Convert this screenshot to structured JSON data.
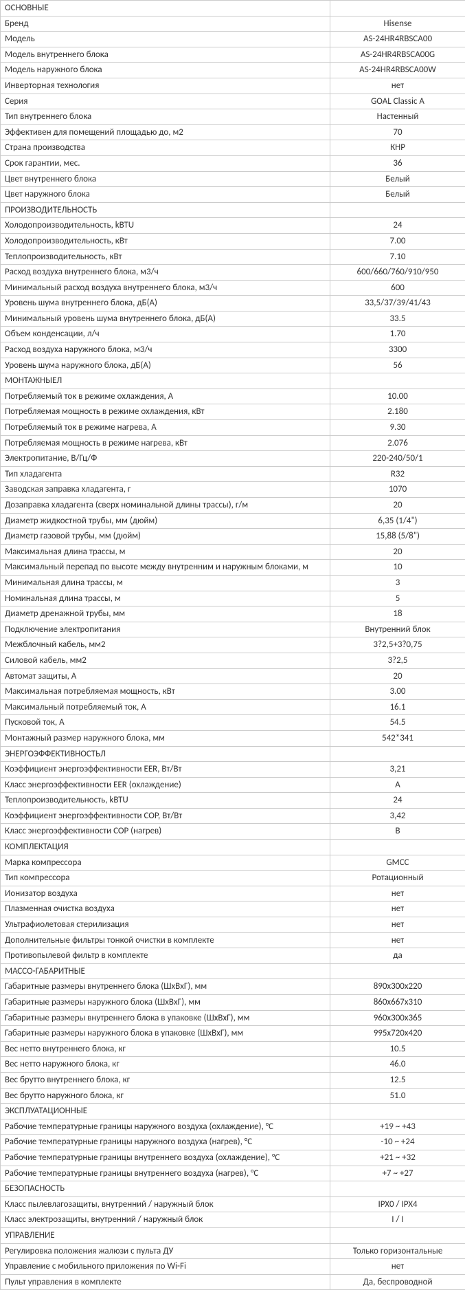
{
  "sections": [
    {
      "header": "ОСНОВНЫЕ",
      "rows": [
        {
          "label": "Бренд",
          "value": "Hisense"
        },
        {
          "label": "Модель",
          "value": "AS-24HR4RBSCA00"
        },
        {
          "label": "Модель внутреннего блока",
          "value": "AS-24HR4RBSCA00G"
        },
        {
          "label": "Модель наружного блока",
          "value": "AS-24HR4RBSCA00W"
        },
        {
          "label": "Инверторная технология",
          "value": "нет"
        },
        {
          "label": "Серия",
          "value": "GOAL Classic A"
        },
        {
          "label": "Тип внутреннего блока",
          "value": "Настенный"
        },
        {
          "label": "Эффективен для помещений площадью до, м2",
          "value": "70"
        },
        {
          "label": "Страна производства",
          "value": "КНР"
        },
        {
          "label": "Срок гарантии, мес.",
          "value": "36"
        },
        {
          "label": "Цвет внутреннего блока",
          "value": "Белый"
        },
        {
          "label": "Цвет наружного блока",
          "value": "Белый"
        }
      ]
    },
    {
      "header": "ПРОИЗВОДИТЕЛЬНОСТЬ",
      "rows": [
        {
          "label": "Холодопроизводительность, kBTU",
          "value": "24"
        },
        {
          "label": "Холодопроизводительность, кВт",
          "value": "7.00"
        },
        {
          "label": "Теплопроизводительность, кВт",
          "value": "7.10"
        },
        {
          "label": "Расход воздуха внутреннего блока, м3/ч",
          "value": "600/660/760/910/950"
        },
        {
          "label": "Минимальный расход воздуха внутреннего блока, м3/ч",
          "value": "600"
        },
        {
          "label": "Уровень шума внутреннего блока, дБ(А)",
          "value": "33,5/37/39/41/43"
        },
        {
          "label": "Минимальный уровень шума внутреннего блока, дБ(А)",
          "value": "33.5"
        },
        {
          "label": "Объем конденсации, л/ч",
          "value": "1.70"
        },
        {
          "label": "Расход воздуха наружного блока, м3/ч",
          "value": "3300"
        },
        {
          "label": "Уровень шума наружного блока, дБ(А)",
          "value": "56"
        }
      ]
    },
    {
      "header": "МОНТАЖНЫЕЛ",
      "rows": [
        {
          "label": "Потребляемый ток в режиме охлаждения, А",
          "value": "10.00"
        },
        {
          "label": "Потребляемая мощность в режиме охлаждения, кВт",
          "value": "2.180"
        },
        {
          "label": "Потребляемый ток в режиме нагрева, А",
          "value": "9.30"
        },
        {
          "label": "Потребляемая мощность в режиме нагрева, кВт",
          "value": "2.076"
        },
        {
          "label": "Электропитание, В/Гц/Ф",
          "value": "220-240/50/1"
        },
        {
          "label": "Тип хладагента",
          "value": "R32"
        },
        {
          "label": "Заводская заправка хладагента, г",
          "value": "1070"
        },
        {
          "label": "Дозаправка хладагента (сверх номинальной длины трассы), г/м",
          "value": "20"
        },
        {
          "label": "Диаметр жидкостной трубы, мм (дюйм)",
          "value": "6,35 (1/4\")"
        },
        {
          "label": "Диаметр газовой трубы, мм (дюйм)",
          "value": "15,88 (5/8\")"
        },
        {
          "label": "Максимальная длина трассы, м",
          "value": "20"
        },
        {
          "label": "Максимальный перепад по высоте между внутренним и наружным блоками, м",
          "value": "10"
        },
        {
          "label": "Минимальная длина трассы, м",
          "value": "3"
        },
        {
          "label": "Номинальная длина трассы, м",
          "value": "5"
        },
        {
          "label": "Диаметр дренажной трубы, мм",
          "value": "18"
        },
        {
          "label": "Подключение электропитания",
          "value": "Внутренний блок"
        },
        {
          "label": "Межблочный кабель, мм2",
          "value": "3?2,5+3?0,75"
        },
        {
          "label": "Силовой кабель, мм2",
          "value": "3?2,5"
        },
        {
          "label": "Автомат защиты, А",
          "value": "20"
        },
        {
          "label": "Максимальная потребляемая мощность, кВт",
          "value": "3.00"
        },
        {
          "label": "Максимальный потребляемый ток, А",
          "value": "16.1"
        },
        {
          "label": "Пусковой ток, А",
          "value": "54.5"
        },
        {
          "label": "Монтажный размер наружного блока, мм",
          "value": "542*341"
        }
      ]
    },
    {
      "header": "ЭНЕРГОЭФФЕКТИВНОСТЬЛ",
      "rows": [
        {
          "label": "Коэффициент энергоэффективности EER, Вт/Вт",
          "value": "3,21"
        },
        {
          "label": "Класс энергоэффективности EER (охлаждение)",
          "value": "A"
        },
        {
          "label": "Теплопроизводительность, kBTU",
          "value": "24"
        },
        {
          "label": "Коэффициент энергоэффективности COP, Вт/Вт",
          "value": "3,42"
        },
        {
          "label": "Класс энергоэффективности COP (нагрев)",
          "value": "B"
        }
      ]
    },
    {
      "header": "КОМПЛЕКТАЦИЯ",
      "rows": [
        {
          "label": "Марка компрессора",
          "value": "GMCC"
        },
        {
          "label": "Тип компрессора",
          "value": "Ротационный"
        },
        {
          "label": "Ионизатор воздуха",
          "value": "нет"
        },
        {
          "label": "Плазменная очистка воздуха",
          "value": "нет"
        },
        {
          "label": "Ультрафиолетовая стерилизация",
          "value": "нет"
        },
        {
          "label": "Дополнительные фильтры тонкой очистки в комплекте",
          "value": "нет"
        },
        {
          "label": "Противопылевой фильтр в комплекте",
          "value": "да"
        }
      ]
    },
    {
      "header": "МАССО-ГАБАРИТНЫЕ",
      "rows": [
        {
          "label": "Габаритные размеры внутреннего блока (ШхВхГ), мм",
          "value": "890х300х220"
        },
        {
          "label": "Габаритные размеры наружного блока (ШхВхГ), мм",
          "value": "860х667х310"
        },
        {
          "label": "Габаритные размеры внутреннего блока в упаковке (ШхВхГ), мм",
          "value": "960х300х365"
        },
        {
          "label": "Габаритные размеры наружного блока в упаковке (ШхВхГ), мм",
          "value": "995х720х420"
        },
        {
          "label": "Вес нетто внутреннего блока, кг",
          "value": "10.5"
        },
        {
          "label": "Вес нетто наружного блока, кг",
          "value": "46.0"
        },
        {
          "label": "Вес брутто внутреннего блока, кг",
          "value": "12.5"
        },
        {
          "label": "Вес брутто наружного блока, кг",
          "value": "51.0"
        }
      ]
    },
    {
      "header": "ЭКСПЛУАТАЦИОННЫЕ",
      "rows": [
        {
          "label": "Рабочие температурные границы наружного воздуха (охлаждение), °С",
          "value": "+19 ~ +43"
        },
        {
          "label": "Рабочие температурные границы наружного воздуха (нагрев), °С",
          "value": "-10 ~ +24"
        },
        {
          "label": "Рабочие температурные границы внутреннего воздуха (охлаждение), °С",
          "value": "+21 ~ +32"
        },
        {
          "label": "Рабочие температурные границы внутреннего воздуха (нагрев), °С",
          "value": "+7 ~ +27"
        }
      ]
    },
    {
      "header": "БЕЗОПАСНОСТЬ",
      "rows": [
        {
          "label": "Класс пылевлагозащиты, внутренний / наружный блок",
          "value": "IPX0 / IPX4"
        },
        {
          "label": "Класс электрозащиты, внутренний / наружный блок",
          "value": "I / I"
        }
      ]
    },
    {
      "header": "УПРАВЛЕНИЕ",
      "rows": [
        {
          "label": "Регулировка положения жалюзи с пульта ДУ",
          "value": "Только горизонтальные"
        },
        {
          "label": "Управление с мобильного приложения по Wi-Fi",
          "value": "нет"
        },
        {
          "label": "Пульт управления в комплекте",
          "value": "Да, беспроводной"
        }
      ]
    }
  ]
}
